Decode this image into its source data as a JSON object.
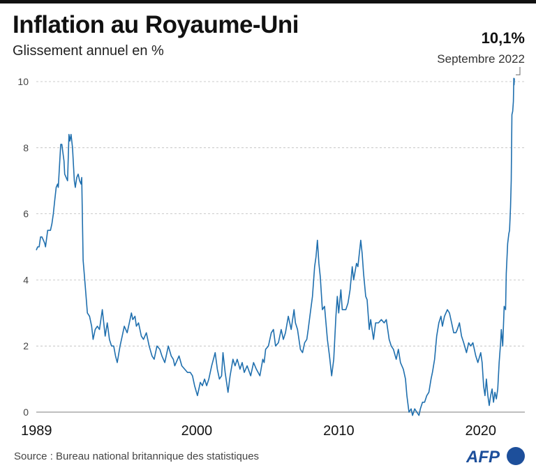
{
  "header": {
    "title": "Inflation au Royaume-Uni",
    "subtitle": "Glissement annuel en %"
  },
  "annotation": {
    "value": "10,1%",
    "date": "Septembre 2022"
  },
  "footer": {
    "source": "Source : Bureau national britannique des statistiques",
    "logo": "AFP"
  },
  "colors": {
    "line": "#1f6fae",
    "logo": "#1d4f9b",
    "grid": "#bbbbbb"
  },
  "chart_data": {
    "type": "line",
    "title": "Inflation au Royaume-Uni",
    "subtitle": "Glissement annuel en %",
    "xlabel": "",
    "ylabel": "",
    "xlim": [
      1989,
      2022.67
    ],
    "ylim": [
      0,
      10
    ],
    "x_ticks": [
      "1989",
      "2000",
      "2010",
      "2020"
    ],
    "y_ticks": [
      "0",
      "2",
      "4",
      "6",
      "8",
      "10"
    ],
    "grid": "horizontal dashed",
    "series": [
      {
        "points": [
          [
            1989.0,
            4.9
          ],
          [
            1989.1,
            5.0
          ],
          [
            1989.2,
            5.0
          ],
          [
            1989.3,
            5.3
          ],
          [
            1989.4,
            5.3
          ],
          [
            1989.5,
            5.2
          ],
          [
            1989.6,
            5.1
          ],
          [
            1989.65,
            5.0
          ],
          [
            1989.8,
            5.5
          ],
          [
            1990.0,
            5.5
          ],
          [
            1990.1,
            5.7
          ],
          [
            1990.2,
            6.0
          ],
          [
            1990.3,
            6.4
          ],
          [
            1990.4,
            6.8
          ],
          [
            1990.5,
            6.9
          ],
          [
            1990.55,
            6.8
          ],
          [
            1990.72,
            8.1
          ],
          [
            1990.8,
            8.1
          ],
          [
            1990.95,
            7.6
          ],
          [
            1991.0,
            7.2
          ],
          [
            1991.2,
            7.0
          ],
          [
            1991.3,
            8.4
          ],
          [
            1991.37,
            8.2
          ],
          [
            1991.45,
            8.4
          ],
          [
            1991.55,
            8.0
          ],
          [
            1991.68,
            7.0
          ],
          [
            1991.75,
            6.8
          ],
          [
            1991.85,
            7.1
          ],
          [
            1991.95,
            7.2
          ],
          [
            1992.05,
            7.0
          ],
          [
            1992.15,
            6.9
          ],
          [
            1992.2,
            7.1
          ],
          [
            1992.3,
            4.6
          ],
          [
            1992.45,
            3.8
          ],
          [
            1992.6,
            3.0
          ],
          [
            1992.75,
            2.9
          ],
          [
            1992.9,
            2.6
          ],
          [
            1993.0,
            2.2
          ],
          [
            1993.15,
            2.5
          ],
          [
            1993.3,
            2.6
          ],
          [
            1993.45,
            2.5
          ],
          [
            1993.65,
            3.1
          ],
          [
            1993.85,
            2.3
          ],
          [
            1994.0,
            2.7
          ],
          [
            1994.15,
            2.2
          ],
          [
            1994.3,
            2.0
          ],
          [
            1994.45,
            2.0
          ],
          [
            1994.58,
            1.7
          ],
          [
            1994.7,
            1.5
          ],
          [
            1994.9,
            2.0
          ],
          [
            1995.05,
            2.3
          ],
          [
            1995.2,
            2.6
          ],
          [
            1995.4,
            2.4
          ],
          [
            1995.55,
            2.7
          ],
          [
            1995.7,
            3.0
          ],
          [
            1995.8,
            2.8
          ],
          [
            1995.95,
            2.9
          ],
          [
            1996.05,
            2.6
          ],
          [
            1996.2,
            2.7
          ],
          [
            1996.4,
            2.3
          ],
          [
            1996.55,
            2.2
          ],
          [
            1996.75,
            2.4
          ],
          [
            1996.95,
            2.0
          ],
          [
            1997.15,
            1.7
          ],
          [
            1997.3,
            1.6
          ],
          [
            1997.5,
            2.0
          ],
          [
            1997.7,
            1.9
          ],
          [
            1997.85,
            1.7
          ],
          [
            1998.05,
            1.5
          ],
          [
            1998.3,
            2.0
          ],
          [
            1998.5,
            1.7
          ],
          [
            1998.65,
            1.6
          ],
          [
            1998.75,
            1.4
          ],
          [
            1999.05,
            1.7
          ],
          [
            1999.25,
            1.4
          ],
          [
            1999.45,
            1.3
          ],
          [
            1999.65,
            1.2
          ],
          [
            1999.85,
            1.2
          ],
          [
            2000.0,
            1.1
          ],
          [
            2000.15,
            0.8
          ],
          [
            2000.35,
            0.5
          ],
          [
            2000.55,
            0.9
          ],
          [
            2000.7,
            0.8
          ],
          [
            2000.85,
            1.0
          ],
          [
            2001.0,
            0.8
          ],
          [
            2001.15,
            1.0
          ],
          [
            2001.35,
            1.4
          ],
          [
            2001.6,
            1.8
          ],
          [
            2001.75,
            1.3
          ],
          [
            2001.9,
            1.0
          ],
          [
            2002.05,
            1.1
          ],
          [
            2002.15,
            1.8
          ],
          [
            2002.3,
            1.2
          ],
          [
            2002.5,
            0.6
          ],
          [
            2002.65,
            1.1
          ],
          [
            2002.85,
            1.6
          ],
          [
            2003.0,
            1.4
          ],
          [
            2003.15,
            1.6
          ],
          [
            2003.35,
            1.3
          ],
          [
            2003.5,
            1.5
          ],
          [
            2003.65,
            1.2
          ],
          [
            2003.85,
            1.4
          ],
          [
            2004.1,
            1.1
          ],
          [
            2004.3,
            1.5
          ],
          [
            2004.5,
            1.3
          ],
          [
            2004.75,
            1.1
          ],
          [
            2004.95,
            1.6
          ],
          [
            2005.05,
            1.5
          ],
          [
            2005.15,
            1.9
          ],
          [
            2005.35,
            2.0
          ],
          [
            2005.55,
            2.4
          ],
          [
            2005.7,
            2.5
          ],
          [
            2005.85,
            2.0
          ],
          [
            2006.05,
            2.1
          ],
          [
            2006.25,
            2.5
          ],
          [
            2006.4,
            2.2
          ],
          [
            2006.55,
            2.4
          ],
          [
            2006.75,
            2.9
          ],
          [
            2006.95,
            2.5
          ],
          [
            2007.15,
            3.1
          ],
          [
            2007.25,
            2.7
          ],
          [
            2007.4,
            2.5
          ],
          [
            2007.6,
            1.9
          ],
          [
            2007.75,
            1.8
          ],
          [
            2007.9,
            2.1
          ],
          [
            2008.05,
            2.2
          ],
          [
            2008.15,
            2.5
          ],
          [
            2008.3,
            3.0
          ],
          [
            2008.45,
            3.5
          ],
          [
            2008.6,
            4.4
          ],
          [
            2008.7,
            4.7
          ],
          [
            2008.8,
            5.2
          ],
          [
            2008.9,
            4.5
          ],
          [
            2009.0,
            4.1
          ],
          [
            2009.15,
            3.1
          ],
          [
            2009.3,
            3.2
          ],
          [
            2009.5,
            2.2
          ],
          [
            2009.65,
            1.7
          ],
          [
            2009.8,
            1.1
          ],
          [
            2009.95,
            1.6
          ],
          [
            2010.1,
            2.9
          ],
          [
            2010.2,
            3.5
          ],
          [
            2010.3,
            3.0
          ],
          [
            2010.45,
            3.7
          ],
          [
            2010.55,
            3.1
          ],
          [
            2010.8,
            3.1
          ],
          [
            2010.95,
            3.3
          ],
          [
            2011.1,
            3.7
          ],
          [
            2011.25,
            4.4
          ],
          [
            2011.35,
            4.0
          ],
          [
            2011.55,
            4.5
          ],
          [
            2011.65,
            4.4
          ],
          [
            2011.85,
            5.2
          ],
          [
            2011.95,
            4.8
          ],
          [
            2012.05,
            4.2
          ],
          [
            2012.2,
            3.5
          ],
          [
            2012.3,
            3.4
          ],
          [
            2012.45,
            2.5
          ],
          [
            2012.55,
            2.8
          ],
          [
            2012.75,
            2.2
          ],
          [
            2012.9,
            2.7
          ],
          [
            2013.1,
            2.7
          ],
          [
            2013.3,
            2.8
          ],
          [
            2013.5,
            2.7
          ],
          [
            2013.65,
            2.8
          ],
          [
            2013.85,
            2.2
          ],
          [
            2014.0,
            2.0
          ],
          [
            2014.15,
            1.9
          ],
          [
            2014.35,
            1.6
          ],
          [
            2014.5,
            1.9
          ],
          [
            2014.65,
            1.5
          ],
          [
            2014.85,
            1.3
          ],
          [
            2015.0,
            1.0
          ],
          [
            2015.1,
            0.5
          ],
          [
            2015.25,
            0.0
          ],
          [
            2015.4,
            0.1
          ],
          [
            2015.5,
            -0.1
          ],
          [
            2015.65,
            0.1
          ],
          [
            2015.8,
            0.0
          ],
          [
            2015.95,
            -0.1
          ],
          [
            2016.05,
            0.1
          ],
          [
            2016.2,
            0.3
          ],
          [
            2016.35,
            0.3
          ],
          [
            2016.5,
            0.5
          ],
          [
            2016.65,
            0.6
          ],
          [
            2016.8,
            1.0
          ],
          [
            2016.9,
            1.2
          ],
          [
            2017.05,
            1.6
          ],
          [
            2017.2,
            2.3
          ],
          [
            2017.35,
            2.7
          ],
          [
            2017.5,
            2.9
          ],
          [
            2017.6,
            2.6
          ],
          [
            2017.75,
            2.9
          ],
          [
            2017.95,
            3.1
          ],
          [
            2018.1,
            3.0
          ],
          [
            2018.25,
            2.7
          ],
          [
            2018.4,
            2.4
          ],
          [
            2018.55,
            2.4
          ],
          [
            2018.65,
            2.5
          ],
          [
            2018.8,
            2.7
          ],
          [
            2018.95,
            2.3
          ],
          [
            2019.1,
            2.1
          ],
          [
            2019.3,
            1.8
          ],
          [
            2019.45,
            2.1
          ],
          [
            2019.6,
            2.0
          ],
          [
            2019.75,
            2.1
          ],
          [
            2019.95,
            1.7
          ],
          [
            2020.1,
            1.5
          ],
          [
            2020.3,
            1.8
          ],
          [
            2020.4,
            1.5
          ],
          [
            2020.5,
            0.8
          ],
          [
            2020.6,
            0.5
          ],
          [
            2020.7,
            1.0
          ],
          [
            2020.8,
            0.5
          ],
          [
            2020.9,
            0.2
          ],
          [
            2021.0,
            0.5
          ],
          [
            2021.1,
            0.7
          ],
          [
            2021.2,
            0.3
          ],
          [
            2021.3,
            0.6
          ],
          [
            2021.4,
            0.4
          ],
          [
            2021.5,
            0.7
          ],
          [
            2021.6,
            1.5
          ],
          [
            2021.7,
            2.1
          ],
          [
            2021.75,
            2.5
          ],
          [
            2021.85,
            2.0
          ],
          [
            2021.95,
            3.2
          ],
          [
            2022.05,
            3.1
          ],
          [
            2022.1,
            4.2
          ],
          [
            2022.2,
            5.1
          ],
          [
            2022.28,
            5.4
          ],
          [
            2022.33,
            5.5
          ],
          [
            2022.4,
            6.2
          ],
          [
            2022.45,
            7.0
          ],
          [
            2022.5,
            9.0
          ],
          [
            2022.55,
            9.1
          ],
          [
            2022.6,
            9.4
          ],
          [
            2022.63,
            10.1
          ],
          [
            2022.65,
            9.9
          ],
          [
            2022.67,
            10.1
          ]
        ]
      }
    ]
  }
}
